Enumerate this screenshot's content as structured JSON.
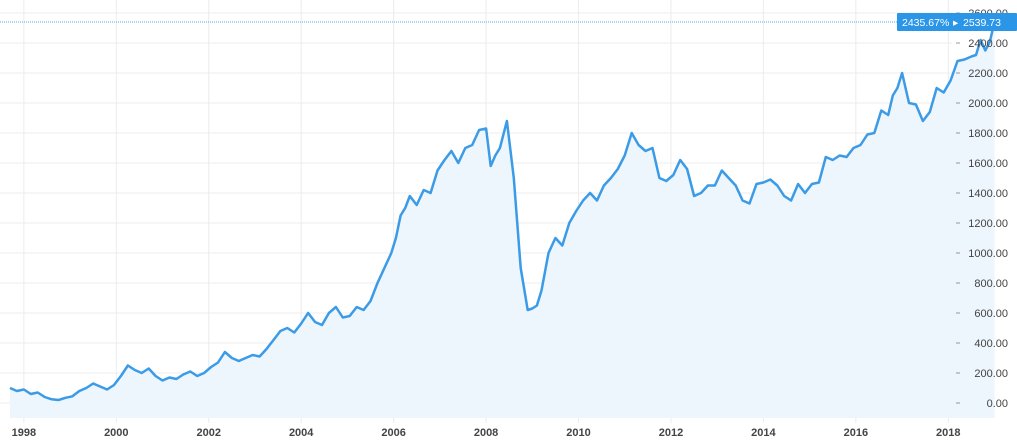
{
  "colors": {
    "line": "#3b9be6",
    "area": "#edf5fd",
    "grid": "#ececec",
    "crosshair": "#5aa8ef",
    "badge": "#2b95e8",
    "axis_text": "#444444"
  },
  "badge": {
    "percent": "2435.67%",
    "separator": "▸",
    "value": "2539.73"
  },
  "chart_data": {
    "type": "area",
    "title": "",
    "xlabel": "",
    "ylabel": "",
    "grid": true,
    "y_axis_position": "right",
    "xlim": [
      1997.7,
      2019.4
    ],
    "ylim": [
      -100,
      2620
    ],
    "x_tick_values": [
      1998,
      2000,
      2002,
      2004,
      2006,
      2008,
      2010,
      2012,
      2014,
      2016,
      2018
    ],
    "x_tick_labels": [
      "1998",
      "2000",
      "2002",
      "2004",
      "2006",
      "2008",
      "2010",
      "2012",
      "2014",
      "2016",
      "2018"
    ],
    "y_tick_values": [
      0,
      200,
      400,
      600,
      800,
      1000,
      1200,
      1400,
      1600,
      1800,
      2000,
      2200,
      2400,
      2600
    ],
    "y_tick_labels": [
      "0.00",
      "200.00",
      "400.00",
      "600.00",
      "800.00",
      "1000.00",
      "1200.00",
      "1400.00",
      "1600.00",
      "1800.00",
      "2000.00",
      "2200.00",
      "2400.00",
      "2600.00"
    ],
    "current_value": 2539.73,
    "series": [
      {
        "x": [
          1997.7,
          1997.85,
          1998.0,
          1998.15,
          1998.3,
          1998.45,
          1998.6,
          1998.75,
          1998.9,
          1999.05,
          1999.2,
          1999.35,
          1999.5,
          1999.65,
          1999.8,
          1999.95,
          2000.1,
          2000.25,
          2000.4,
          2000.55,
          2000.7,
          2000.85,
          2001.0,
          2001.15,
          2001.3,
          2001.45,
          2001.6,
          2001.75,
          2001.9,
          2002.05,
          2002.2,
          2002.35,
          2002.5,
          2002.65,
          2002.8,
          2002.95,
          2003.1,
          2003.25,
          2003.4,
          2003.55,
          2003.7,
          2003.85,
          2004.0,
          2004.15,
          2004.3,
          2004.45,
          2004.6,
          2004.75,
          2004.9,
          2005.05,
          2005.2,
          2005.35,
          2005.5,
          2005.65,
          2005.8,
          2005.95,
          2006.05,
          2006.15,
          2006.25,
          2006.35,
          2006.5,
          2006.65,
          2006.8,
          2006.95,
          2007.1,
          2007.25,
          2007.4,
          2007.55,
          2007.7,
          2007.85,
          2008.0,
          2008.1,
          2008.2,
          2008.3,
          2008.45,
          2008.6,
          2008.75,
          2008.9,
          2009.0,
          2009.1,
          2009.2,
          2009.35,
          2009.5,
          2009.65,
          2009.8,
          2009.95,
          2010.1,
          2010.25,
          2010.4,
          2010.55,
          2010.7,
          2010.85,
          2011.0,
          2011.15,
          2011.3,
          2011.45,
          2011.6,
          2011.75,
          2011.9,
          2012.05,
          2012.2,
          2012.35,
          2012.5,
          2012.65,
          2012.8,
          2012.95,
          2013.1,
          2013.25,
          2013.4,
          2013.55,
          2013.7,
          2013.85,
          2014.0,
          2014.15,
          2014.3,
          2014.45,
          2014.6,
          2014.75,
          2014.9,
          2015.05,
          2015.2,
          2015.35,
          2015.5,
          2015.65,
          2015.8,
          2015.95,
          2016.1,
          2016.25,
          2016.4,
          2016.55,
          2016.7,
          2016.8,
          2016.9,
          2017.0,
          2017.15,
          2017.3,
          2017.45,
          2017.6,
          2017.75,
          2017.9,
          2018.05,
          2018.2,
          2018.35,
          2018.5,
          2018.6,
          2018.7,
          2018.8,
          2018.9,
          2019.0
        ],
        "values": [
          100,
          80,
          90,
          60,
          70,
          40,
          25,
          20,
          35,
          45,
          80,
          100,
          130,
          110,
          90,
          120,
          180,
          250,
          220,
          200,
          230,
          180,
          150,
          170,
          160,
          190,
          210,
          180,
          200,
          240,
          270,
          340,
          300,
          280,
          300,
          320,
          310,
          360,
          420,
          480,
          500,
          470,
          530,
          600,
          540,
          520,
          600,
          640,
          570,
          580,
          640,
          620,
          680,
          800,
          900,
          1000,
          1100,
          1250,
          1300,
          1380,
          1320,
          1420,
          1400,
          1550,
          1620,
          1680,
          1600,
          1700,
          1720,
          1820,
          1830,
          1580,
          1650,
          1700,
          1880,
          1500,
          900,
          620,
          630,
          650,
          750,
          1000,
          1100,
          1050,
          1200,
          1280,
          1350,
          1400,
          1350,
          1450,
          1500,
          1560,
          1650,
          1800,
          1720,
          1680,
          1700,
          1500,
          1480,
          1520,
          1620,
          1560,
          1380,
          1400,
          1450,
          1450,
          1550,
          1500,
          1450,
          1350,
          1330,
          1460,
          1470,
          1490,
          1450,
          1380,
          1350,
          1460,
          1400,
          1460,
          1470,
          1640,
          1620,
          1650,
          1640,
          1700,
          1720,
          1790,
          1800,
          1950,
          1920,
          2050,
          2100,
          2200,
          2000,
          1990,
          1880,
          1940,
          2100,
          2070,
          2150,
          2280,
          2290,
          2310,
          2320,
          2420,
          2350,
          2410,
          2539.73
        ]
      }
    ]
  }
}
